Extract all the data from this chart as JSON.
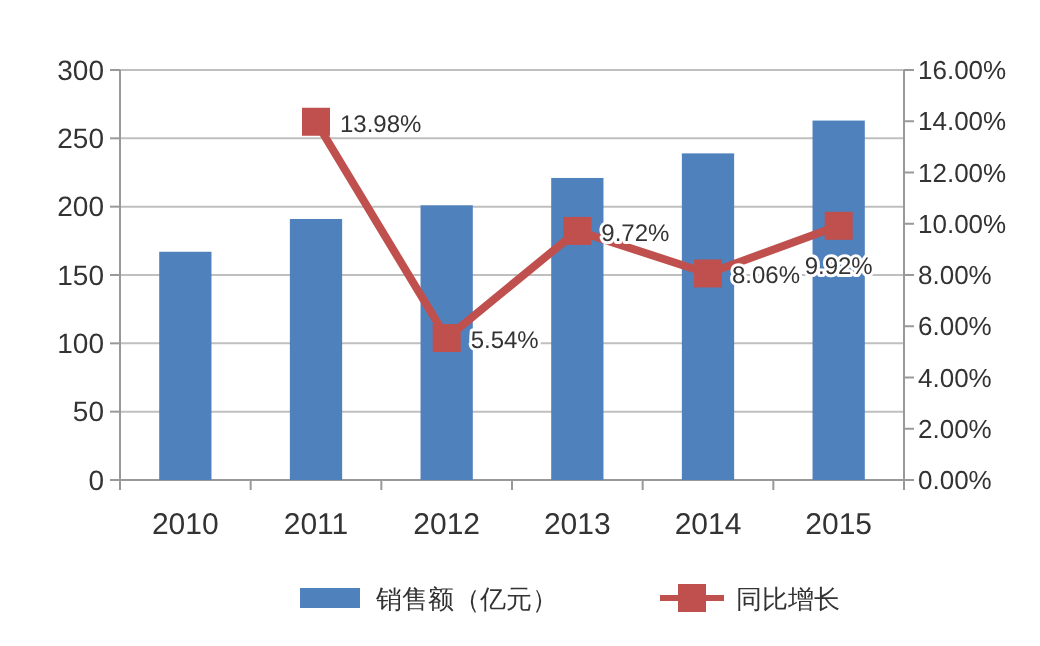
{
  "chart_data": {
    "type": "bar",
    "categories": [
      "2010",
      "2011",
      "2012",
      "2013",
      "2014",
      "2015"
    ],
    "series": [
      {
        "name": "销售额（亿元）",
        "color": "#4f81bd",
        "values": [
          167,
          191,
          201,
          221,
          239,
          263
        ]
      },
      {
        "name": "同比增长",
        "type": "line",
        "axis": "y2",
        "color": "#c0504d",
        "marker": "square",
        "values": [
          null,
          13.98,
          5.54,
          9.72,
          8.06,
          9.92
        ],
        "value_labels": [
          null,
          "13.98%",
          "5.54%",
          "9.72%",
          "8.06%",
          "9.92%"
        ]
      }
    ],
    "ylim": [
      0,
      300
    ],
    "yticks": [
      0,
      50,
      100,
      150,
      200,
      250,
      300
    ],
    "y2lim": [
      0,
      16
    ],
    "y2ticks": [
      {
        "value": 0,
        "label": "0.00%"
      },
      {
        "value": 2,
        "label": "2.00%"
      },
      {
        "value": 4,
        "label": "4.00%"
      },
      {
        "value": 6,
        "label": "6.00%"
      },
      {
        "value": 8,
        "label": "8.00%"
      },
      {
        "value": 10,
        "label": "10.00%"
      },
      {
        "value": 12,
        "label": "12.00%"
      },
      {
        "value": 14,
        "label": "14.00%"
      },
      {
        "value": 16,
        "label": "16.00%"
      }
    ],
    "grid": "y",
    "legend": "bottom"
  }
}
